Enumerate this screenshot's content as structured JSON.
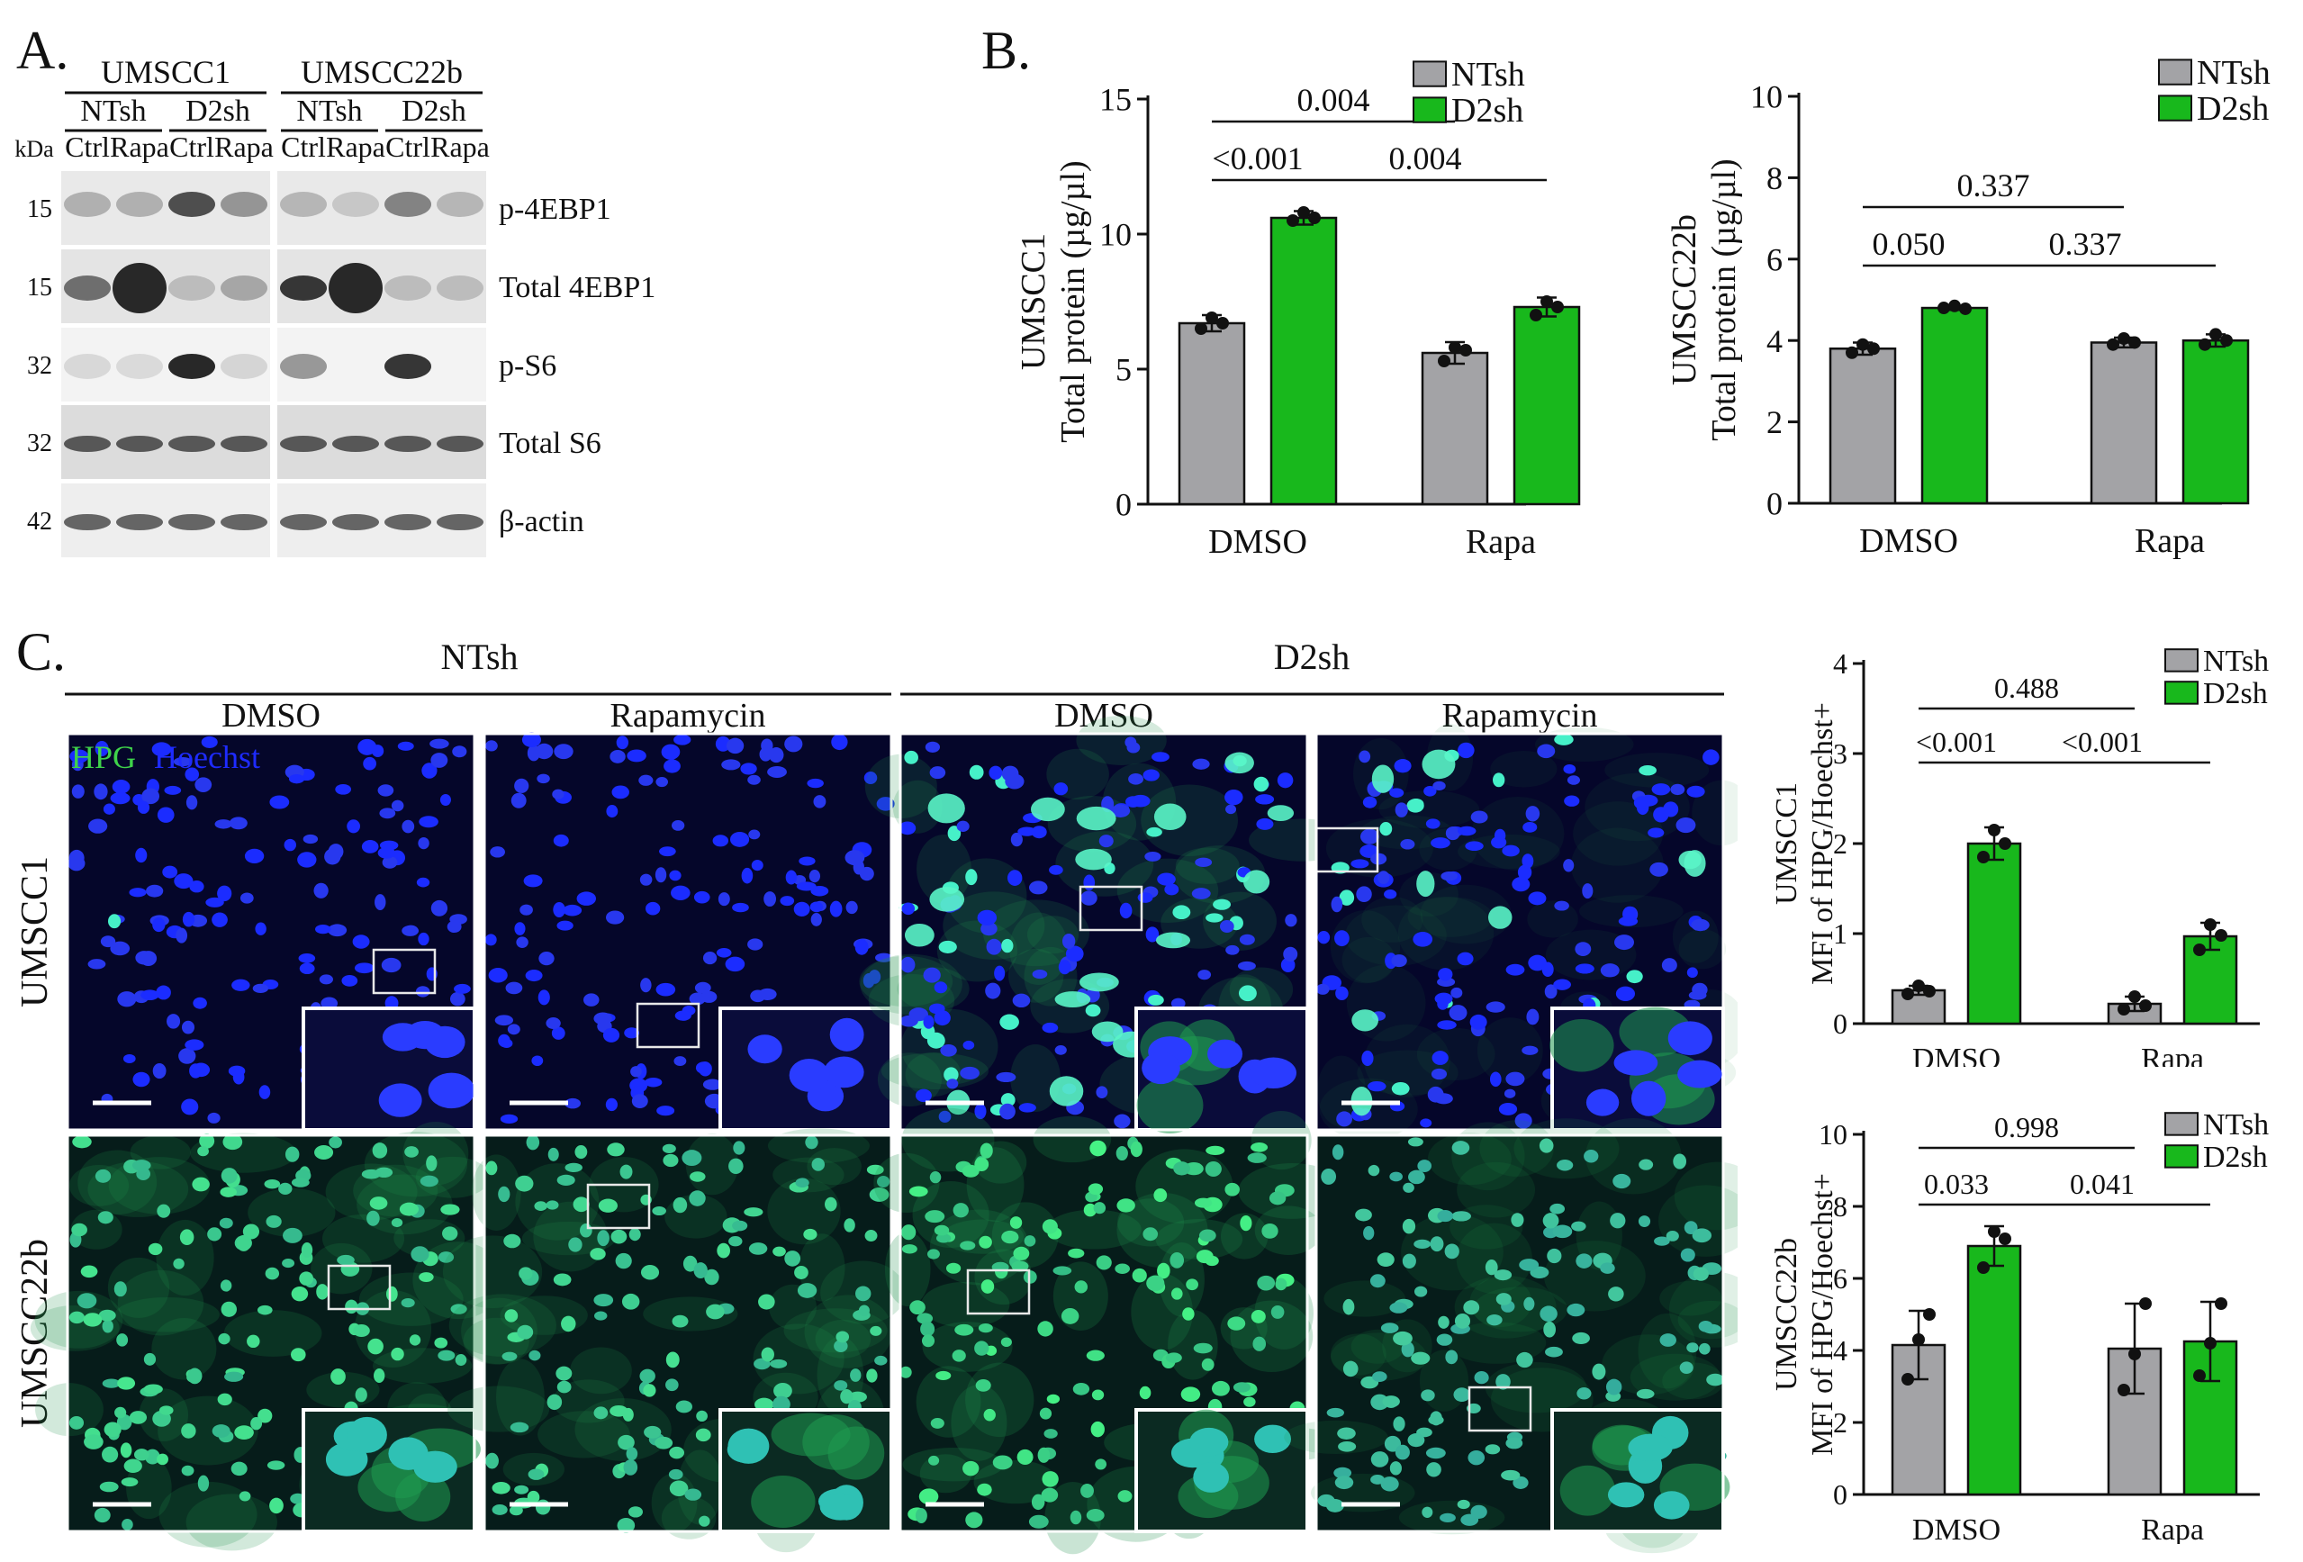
{
  "panels": {
    "a": "A.",
    "b": "B.",
    "c": "C."
  },
  "colors": {
    "ntsh": "#a3a3a6",
    "d2sh": "#18b81c",
    "nucleus": "#1e2bff",
    "hpg": "#3fd24a"
  },
  "western": {
    "kda_label": "kDa",
    "cell_lines": [
      "UMSCC1",
      "UMSCC22b"
    ],
    "groups": [
      "NTsh",
      "D2sh",
      "NTsh",
      "D2sh"
    ],
    "lanes": [
      "Ctrl",
      "Rapa",
      "Ctrl",
      "Rapa",
      "Ctrl",
      "Rapa",
      "Ctrl",
      "Rapa"
    ],
    "rows": [
      {
        "kda": "15",
        "label": "p-4EBP1"
      },
      {
        "kda": "15",
        "label": "Total 4EBP1"
      },
      {
        "kda": "32",
        "label": "p-S6"
      },
      {
        "kda": "32",
        "label": "Total S6"
      },
      {
        "kda": "42",
        "label": "β-actin"
      }
    ]
  },
  "microscopy": {
    "groups": [
      "NTsh",
      "D2sh"
    ],
    "treatments": [
      "DMSO",
      "Rapamycin",
      "DMSO",
      "Rapamycin"
    ],
    "rows": [
      "UMSCC1",
      "UMSCC22b"
    ],
    "stain_hpg": "HPG",
    "stain_hoechst": "Hoechst"
  },
  "chart_data": [
    {
      "id": "b-left",
      "type": "bar",
      "categories": [
        "DMSO",
        "Rapa"
      ],
      "series": [
        {
          "name": "NTsh",
          "values": [
            6.7,
            5.6
          ],
          "errors": [
            0.3,
            0.4
          ],
          "points": [
            [
              6.5,
              6.9,
              6.7
            ],
            [
              5.3,
              5.8,
              5.7
            ]
          ]
        },
        {
          "name": "D2sh",
          "values": [
            10.6,
            7.3
          ],
          "errors": [
            0.25,
            0.35
          ],
          "points": [
            [
              10.5,
              10.8,
              10.6
            ],
            [
              7.0,
              7.5,
              7.3
            ]
          ]
        }
      ],
      "ylabel": "UMSCC1\nTotal protein (µg/µl)",
      "ylim": [
        0,
        15
      ],
      "yticks": [
        0,
        5,
        10,
        15
      ],
      "pvalues": [
        {
          "label": "0.004",
          "from": [
            0,
            0
          ],
          "to": [
            1,
            0
          ],
          "level": 2
        },
        {
          "label": "<0.001",
          "from": [
            0,
            0
          ],
          "to": [
            0,
            1
          ],
          "level": 1
        },
        {
          "label": "0.004",
          "from": [
            0,
            1
          ],
          "to": [
            1,
            1
          ],
          "level": 1
        }
      ],
      "legend": "top-right"
    },
    {
      "id": "b-right",
      "type": "bar",
      "categories": [
        "DMSO",
        "Rapa"
      ],
      "series": [
        {
          "name": "NTsh",
          "values": [
            3.8,
            3.95
          ],
          "errors": [
            0.15,
            0.12
          ],
          "points": [
            [
              3.7,
              3.9,
              3.8
            ],
            [
              3.9,
              4.05,
              3.95
            ]
          ]
        },
        {
          "name": "D2sh",
          "values": [
            4.8,
            4.0
          ],
          "errors": [
            0.05,
            0.15
          ],
          "points": [
            [
              4.8,
              4.85,
              4.78
            ],
            [
              3.9,
              4.15,
              4.0
            ]
          ]
        }
      ],
      "ylabel": "UMSCC22b\nTotal protein (µg/µl)",
      "ylim": [
        0,
        10
      ],
      "yticks": [
        0,
        2,
        4,
        6,
        8,
        10
      ],
      "pvalues": [
        {
          "label": "0.337",
          "from": [
            0,
            0
          ],
          "to": [
            1,
            0
          ],
          "level": 2
        },
        {
          "label": "0.050",
          "from": [
            0,
            0
          ],
          "to": [
            0,
            1
          ],
          "level": 1
        },
        {
          "label": "0.337",
          "from": [
            0,
            1
          ],
          "to": [
            1,
            1
          ],
          "level": 1
        }
      ],
      "legend": "top-right"
    },
    {
      "id": "c-top",
      "type": "bar",
      "categories": [
        "DMSO",
        "Rapa"
      ],
      "series": [
        {
          "name": "NTsh",
          "values": [
            0.37,
            0.22
          ],
          "errors": [
            0.05,
            0.08
          ],
          "points": [
            [
              0.33,
              0.42,
              0.36
            ],
            [
              0.16,
              0.3,
              0.2
            ]
          ]
        },
        {
          "name": "D2sh",
          "values": [
            2.0,
            0.97
          ],
          "errors": [
            0.18,
            0.15
          ],
          "points": [
            [
              1.85,
              2.15,
              2.0
            ],
            [
              0.82,
              1.1,
              0.98
            ]
          ]
        }
      ],
      "ylabel": "UMSCC1\nMFI of HPG/Hoechst+",
      "ylim": [
        0,
        4
      ],
      "yticks": [
        0,
        1,
        2,
        3,
        4
      ],
      "pvalues": [
        {
          "label": "0.488",
          "from": [
            0,
            0
          ],
          "to": [
            1,
            0
          ],
          "level": 2
        },
        {
          "label": "<0.001",
          "from": [
            0,
            0
          ],
          "to": [
            0,
            1
          ],
          "level": 1
        },
        {
          "label": "<0.001",
          "from": [
            0,
            1
          ],
          "to": [
            1,
            1
          ],
          "level": 1
        }
      ],
      "legend": "top-right"
    },
    {
      "id": "c-bottom",
      "type": "bar",
      "categories": [
        "DMSO",
        "Rapa"
      ],
      "series": [
        {
          "name": "NTsh",
          "values": [
            4.15,
            4.05
          ],
          "errors": [
            0.95,
            1.25
          ],
          "points": [
            [
              3.2,
              4.3,
              5.0
            ],
            [
              2.9,
              3.9,
              5.3
            ]
          ]
        },
        {
          "name": "D2sh",
          "values": [
            6.9,
            4.25
          ],
          "errors": [
            0.55,
            1.1
          ],
          "points": [
            [
              6.3,
              7.3,
              7.1
            ],
            [
              3.3,
              4.2,
              5.3
            ]
          ]
        }
      ],
      "ylabel": "UMSCC22b\nMFI of HPG/Hoechst+",
      "ylim": [
        0,
        10
      ],
      "yticks": [
        0,
        2,
        4,
        6,
        8,
        10
      ],
      "pvalues": [
        {
          "label": "0.998",
          "from": [
            0,
            0
          ],
          "to": [
            1,
            0
          ],
          "level": 2
        },
        {
          "label": "0.033",
          "from": [
            0,
            0
          ],
          "to": [
            0,
            1
          ],
          "level": 1
        },
        {
          "label": "0.041",
          "from": [
            0,
            1
          ],
          "to": [
            1,
            1
          ],
          "level": 1
        }
      ],
      "legend": "top-right"
    }
  ]
}
